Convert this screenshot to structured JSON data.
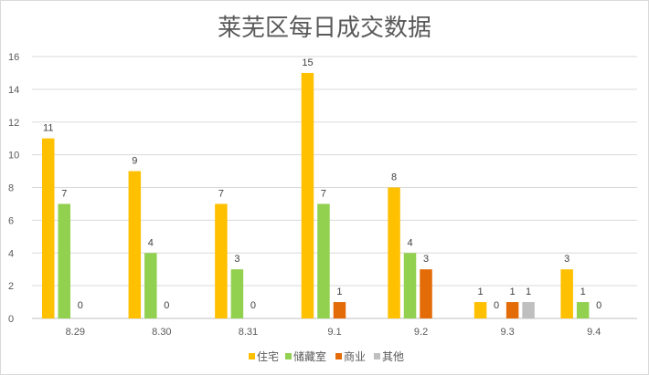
{
  "chart_data": {
    "type": "bar",
    "title": "莱芜区每日成交数据",
    "xlabel": "",
    "ylabel": "",
    "ylim": [
      0,
      16
    ],
    "yticks": [
      0,
      2,
      4,
      6,
      8,
      10,
      12,
      14,
      16
    ],
    "grid": true,
    "legend_position": "bottom",
    "categories": [
      "8.29",
      "8.30",
      "8.31",
      "9.1",
      "9.2",
      "9.3",
      "9.4"
    ],
    "series": [
      {
        "name": "住宅",
        "color": "#FFC000",
        "values": [
          11,
          9,
          7,
          15,
          8,
          1,
          3
        ]
      },
      {
        "name": "储藏室",
        "color": "#92D050",
        "values": [
          7,
          4,
          3,
          7,
          4,
          0,
          1
        ]
      },
      {
        "name": "商业",
        "color": "#E36C09",
        "values": [
          0,
          0,
          0,
          1,
          3,
          1,
          0
        ]
      },
      {
        "name": "其他",
        "color": "#BFBFBF",
        "values": [
          0,
          0,
          0,
          0,
          0,
          1,
          0
        ]
      }
    ]
  }
}
